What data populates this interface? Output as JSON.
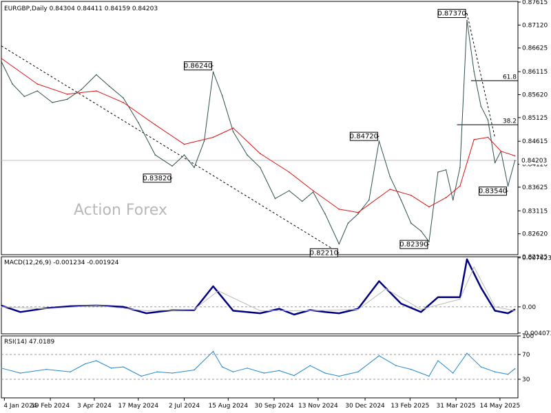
{
  "chart_data": [
    {
      "type": "line",
      "panel": "price",
      "title": "EURGBP,Daily 0.84304 0.84411 0.84159 0.84203",
      "watermark": "Action Forex",
      "ylim": [
        0.8217,
        0.8763
      ],
      "y_ticks": [
        "0.87615",
        "0.87120",
        "0.86625",
        "0.86115",
        "0.85620",
        "0.85125",
        "0.84615",
        "0.84120",
        "0.83625",
        "0.83115",
        "0.82620",
        "0.82125"
      ],
      "last_price": "0.84203",
      "x_ticks": [
        "4 Jan 2024",
        "19 Feb 2024",
        "3 Apr 2024",
        "17 May 2024",
        "2 Jul 2024",
        "15 Aug 2024",
        "30 Sep 2024",
        "13 Nov 2024",
        "30 Dec 2024",
        "13 Feb 2025",
        "31 Mar 2025",
        "14 May 2025"
      ],
      "annotations": [
        {
          "text": "0.86240",
          "x": "2024-07-31",
          "y": 0.8624
        },
        {
          "text": "0.83820",
          "x": "2024-06-20",
          "y": 0.8382
        },
        {
          "text": "0.84720",
          "x": "2025-01-13",
          "y": 0.8472
        },
        {
          "text": "0.82210",
          "x": "2024-12-04",
          "y": 0.8221
        },
        {
          "text": "0.82390",
          "x": "2025-03-04",
          "y": 0.8239
        },
        {
          "text": "0.87370",
          "x": "2025-04-11",
          "y": 0.8737
        },
        {
          "text": "0.83540",
          "x": "2025-05-22",
          "y": 0.8354
        }
      ],
      "fib_levels": [
        {
          "label": "61.8",
          "value": 0.8592,
          "from": "2025-04-15"
        },
        {
          "label": "38.2",
          "value": 0.8497,
          "from": "2025-04-01"
        }
      ],
      "trendlines": [
        {
          "x1": "2024-01-01",
          "y1": 0.8667,
          "x2": "2024-12-01",
          "y2": 0.8225
        },
        {
          "x1": "2025-04-11",
          "y1": 0.8737,
          "x2": "2025-05-09",
          "y2": 0.8469
        }
      ],
      "series": [
        {
          "name": "",
          "color": "#2f4f4f",
          "x": [
            "2024-01-01",
            "2024-01-12",
            "2024-01-24",
            "2024-02-06",
            "2024-02-21",
            "2024-03-07",
            "2024-03-21",
            "2024-04-05",
            "2024-04-18",
            "2024-05-02",
            "2024-05-17",
            "2024-06-03",
            "2024-06-20",
            "2024-07-02",
            "2024-07-12",
            "2024-07-22",
            "2024-07-31",
            "2024-08-09",
            "2024-08-20",
            "2024-09-03",
            "2024-09-16",
            "2024-10-01",
            "2024-10-15",
            "2024-10-28",
            "2024-11-08",
            "2024-11-20",
            "2024-12-04",
            "2024-12-13",
            "2024-12-23",
            "2025-01-03",
            "2025-01-13",
            "2025-01-24",
            "2025-02-04",
            "2025-02-14",
            "2025-02-24",
            "2025-03-04",
            "2025-03-13",
            "2025-03-21",
            "2025-03-28",
            "2025-04-04",
            "2025-04-11",
            "2025-04-18",
            "2025-04-25",
            "2025-05-02",
            "2025-05-09",
            "2025-05-15",
            "2025-05-22",
            "2025-05-29"
          ],
          "values": [
            0.8633,
            0.8585,
            0.8558,
            0.857,
            0.8545,
            0.8552,
            0.8573,
            0.8605,
            0.858,
            0.8555,
            0.8502,
            0.8432,
            0.8408,
            0.8432,
            0.8405,
            0.8462,
            0.8611,
            0.856,
            0.8482,
            0.8432,
            0.8405,
            0.8338,
            0.8355,
            0.8332,
            0.8352,
            0.8305,
            0.824,
            0.8285,
            0.8305,
            0.8335,
            0.8462,
            0.8385,
            0.8335,
            0.8285,
            0.8268,
            0.8245,
            0.8395,
            0.84,
            0.8335,
            0.8405,
            0.8722,
            0.8612,
            0.8537,
            0.8507,
            0.8415,
            0.844,
            0.8365,
            0.842
          ]
        },
        {
          "name": "",
          "color": "#dd1111",
          "x": [
            "2024-01-01",
            "2024-02-06",
            "2024-03-07",
            "2024-04-05",
            "2024-05-02",
            "2024-06-03",
            "2024-07-02",
            "2024-07-31",
            "2024-08-20",
            "2024-09-16",
            "2024-10-15",
            "2024-11-08",
            "2024-12-04",
            "2024-12-23",
            "2025-01-24",
            "2025-02-14",
            "2025-03-04",
            "2025-03-21",
            "2025-04-04",
            "2025-04-18",
            "2025-05-02",
            "2025-05-15",
            "2025-05-29"
          ],
          "values": [
            0.864,
            0.8585,
            0.8563,
            0.857,
            0.8545,
            0.8497,
            0.8455,
            0.847,
            0.849,
            0.8435,
            0.8395,
            0.8355,
            0.8315,
            0.8308,
            0.8358,
            0.8345,
            0.832,
            0.834,
            0.8365,
            0.8465,
            0.847,
            0.844,
            0.843
          ]
        }
      ]
    },
    {
      "type": "line",
      "panel": "macd",
      "title": "MACD(12,26,9) -0.001234 -0.001924",
      "ylim": [
        -0.0042,
        0.0078
      ],
      "y_ticks": [
        "0.007623",
        "0.00",
        "-0.004073"
      ],
      "series": [
        {
          "name": "",
          "color": "#000080",
          "x": [
            "2024-01-01",
            "2024-01-20",
            "2024-02-15",
            "2024-03-10",
            "2024-04-05",
            "2024-05-02",
            "2024-05-25",
            "2024-06-20",
            "2024-07-12",
            "2024-07-31",
            "2024-08-20",
            "2024-09-16",
            "2024-10-05",
            "2024-10-20",
            "2024-11-05",
            "2024-11-20",
            "2024-12-04",
            "2024-12-23",
            "2025-01-13",
            "2025-02-04",
            "2025-02-24",
            "2025-03-13",
            "2025-04-04",
            "2025-04-11",
            "2025-04-25",
            "2025-05-09",
            "2025-05-22",
            "2025-05-29"
          ],
          "values": [
            0.0002,
            -0.0008,
            -0.0002,
            0.0001,
            0.0002,
            0.0,
            -0.001,
            -0.0005,
            -0.0005,
            0.0032,
            -0.0006,
            -0.001,
            -0.0003,
            -0.0012,
            -0.0005,
            -0.0008,
            -0.001,
            -0.0003,
            0.004,
            0.0005,
            -0.0008,
            0.0015,
            0.0015,
            0.0074,
            0.003,
            -0.0006,
            -0.001,
            -0.0004
          ]
        },
        {
          "name": "",
          "color": "#bbbbbb",
          "x": [
            "2024-01-01",
            "2024-02-15",
            "2024-04-05",
            "2024-05-25",
            "2024-07-12",
            "2024-08-05",
            "2024-09-16",
            "2024-11-05",
            "2024-12-23",
            "2025-01-20",
            "2025-02-24",
            "2025-04-04",
            "2025-04-18",
            "2025-05-09",
            "2025-05-29"
          ],
          "values": [
            0.0,
            -0.0003,
            0.0002,
            -0.0006,
            -0.0004,
            0.0025,
            -0.0006,
            -0.0006,
            -0.0004,
            0.0028,
            -0.0004,
            0.0012,
            0.0062,
            0.0,
            -0.0006
          ]
        }
      ]
    },
    {
      "type": "line",
      "panel": "rsi",
      "title": "RSI(14) 47.0189",
      "ylim": [
        0,
        100
      ],
      "y_ticks": [
        "100",
        "70",
        "30",
        "0"
      ],
      "series": [
        {
          "name": "",
          "color": "#2288cc",
          "x": [
            "2024-01-01",
            "2024-01-20",
            "2024-02-15",
            "2024-03-10",
            "2024-03-25",
            "2024-04-05",
            "2024-04-20",
            "2024-05-02",
            "2024-05-20",
            "2024-06-05",
            "2024-06-20",
            "2024-07-12",
            "2024-07-31",
            "2024-08-09",
            "2024-08-20",
            "2024-09-03",
            "2024-09-20",
            "2024-10-05",
            "2024-10-20",
            "2024-11-05",
            "2024-11-20",
            "2024-12-04",
            "2024-12-23",
            "2025-01-13",
            "2025-01-30",
            "2025-02-14",
            "2025-03-04",
            "2025-03-13",
            "2025-03-28",
            "2025-04-11",
            "2025-04-25",
            "2025-05-09",
            "2025-05-22",
            "2025-05-29"
          ],
          "values": [
            48,
            40,
            46,
            42,
            55,
            60,
            48,
            50,
            35,
            42,
            40,
            45,
            75,
            50,
            42,
            48,
            40,
            44,
            36,
            52,
            40,
            35,
            42,
            68,
            52,
            46,
            35,
            60,
            40,
            72,
            50,
            42,
            38,
            47
          ]
        }
      ]
    }
  ]
}
